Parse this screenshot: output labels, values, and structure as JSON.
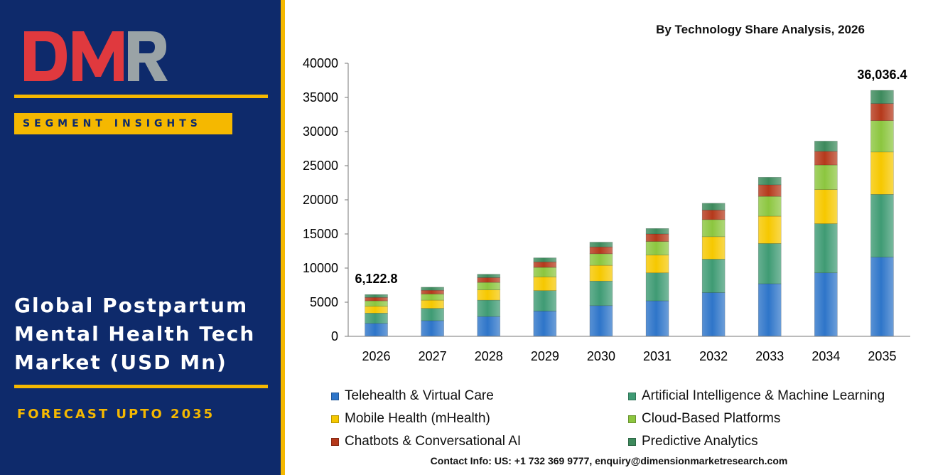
{
  "brand": {
    "logo_text": "DMR",
    "badge": "SEGMENT INSIGHTS",
    "market_title": "Global Postpartum Mental Health Tech Market (USD Mn)",
    "forecast": "FORECAST UPTO 2035"
  },
  "colors": {
    "panel": "#0e2a6b",
    "accent": "#f5b800",
    "logo_red": "#e0393e",
    "logo_grey": "#9aa3a6"
  },
  "contact": "Contact Info: US: +1 732 369 9777, enquiry@dimensionmarketresearch.com",
  "chart_data": {
    "type": "bar",
    "stacked": true,
    "title": "By Technology Share Analysis, 2026",
    "xlabel": "",
    "ylabel": "",
    "ylim": [
      0,
      40000
    ],
    "yticks": [
      0,
      5000,
      10000,
      15000,
      20000,
      25000,
      30000,
      35000,
      40000
    ],
    "grid": false,
    "legend_position": "bottom",
    "categories": [
      "2026",
      "2027",
      "2028",
      "2029",
      "2030",
      "2031",
      "2032",
      "2033",
      "2034",
      "2035"
    ],
    "series": [
      {
        "name": "Telehealth & Virtual Care",
        "color": "#2e75c9",
        "values": [
          1900,
          2300,
          2900,
          3700,
          4500,
          5200,
          6400,
          7700,
          9300,
          11600
        ]
      },
      {
        "name": "Artificial Intelligence & Machine Learning",
        "color": "#3f9b74",
        "values": [
          1500,
          1800,
          2400,
          3000,
          3600,
          4100,
          4900,
          5900,
          7200,
          9200
        ]
      },
      {
        "name": "Mobile Health (mHealth)",
        "color": "#f6c800",
        "values": [
          1000,
          1200,
          1500,
          2000,
          2300,
          2600,
          3300,
          4000,
          5000,
          6200
        ]
      },
      {
        "name": "Cloud-Based Platforms",
        "color": "#8cc63f",
        "values": [
          800,
          900,
          1100,
          1400,
          1700,
          2000,
          2500,
          2900,
          3600,
          4600
        ]
      },
      {
        "name": "Chatbots & Conversational AI",
        "color": "#b5391b",
        "values": [
          500,
          550,
          700,
          800,
          1000,
          1100,
          1400,
          1700,
          2000,
          2500
        ]
      },
      {
        "name": "Predictive Analytics",
        "color": "#3d8a5c",
        "values": [
          422.8,
          450,
          500,
          600,
          700,
          800,
          1000,
          1100,
          1500,
          1936.4
        ]
      }
    ],
    "annotations": [
      {
        "category": "2026",
        "text": "6,122.8"
      },
      {
        "category": "2035",
        "text": "36,036.4"
      }
    ]
  }
}
